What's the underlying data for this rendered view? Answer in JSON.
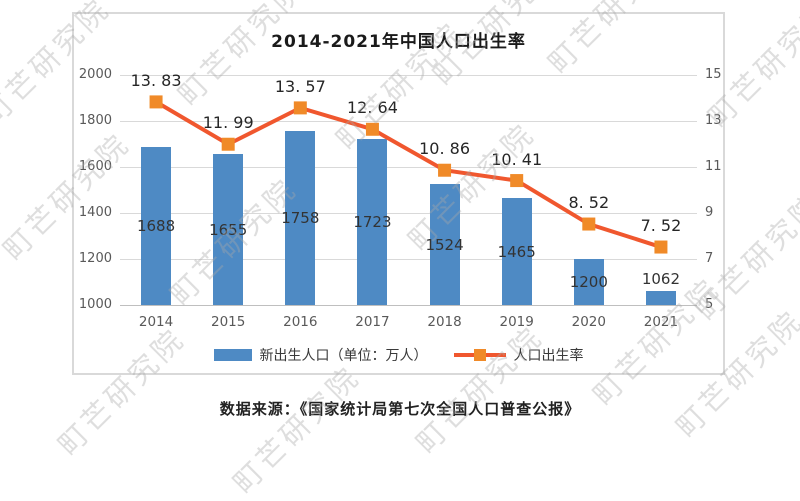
{
  "watermark": {
    "text": "町芒研究院"
  },
  "chart": {
    "title": "2014-2021年中国人口出生率",
    "source": "数据来源：《国家统计局第七次全国人口普查公报》",
    "legend": {
      "bar_label": "新出生人口（单位：万人）",
      "line_label": "人口出生率"
    }
  },
  "colors": {
    "bar": "#4e8ac4",
    "line": "#f0572e",
    "marker": "#f08a28",
    "grid": "#d9d9d9",
    "axis_line": "#bfbfbf",
    "axis_text": "#595959",
    "border": "#d9d9d9"
  },
  "chart_data": {
    "type": "bar+line",
    "categories": [
      "2014",
      "2015",
      "2016",
      "2017",
      "2018",
      "2019",
      "2020",
      "2021"
    ],
    "series": [
      {
        "name": "新出生人口（单位：万人）",
        "type": "bar",
        "axis": "left",
        "values": [
          1688,
          1655,
          1758,
          1723,
          1524,
          1465,
          1200,
          1062
        ]
      },
      {
        "name": "人口出生率",
        "type": "line",
        "axis": "right",
        "values": [
          13.83,
          11.99,
          13.57,
          12.64,
          10.86,
          10.41,
          8.52,
          7.52
        ],
        "point_labels": [
          "13. 83",
          "11. 99",
          "13. 57",
          "12. 64",
          "10. 86",
          "10. 41",
          "8. 52",
          "7. 52"
        ]
      }
    ],
    "left_axis": {
      "min": 1000,
      "max": 2000,
      "step": 200,
      "tick_labels": [
        "2000",
        "1800",
        "1600",
        "1400",
        "1200",
        "1000"
      ]
    },
    "right_axis": {
      "min": 5,
      "max": 15,
      "step": 2,
      "tick_labels": [
        "15",
        "13",
        "11",
        "9",
        "7",
        "5"
      ]
    },
    "grid": true,
    "legend_position": "bottom"
  }
}
